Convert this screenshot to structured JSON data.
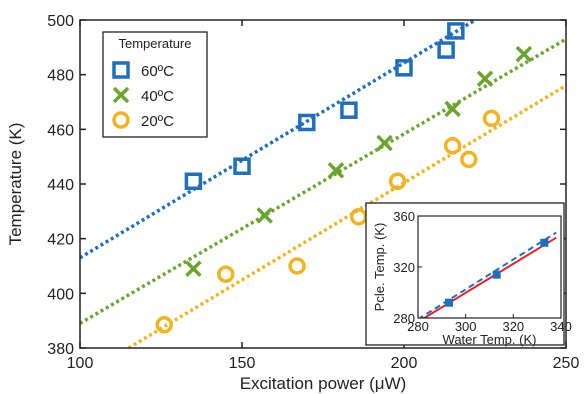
{
  "chart_data": [
    {
      "type": "scatter",
      "title": "",
      "xlabel": "Excitation power (μW)",
      "ylabel": "Temperature (K)",
      "xlim": [
        100,
        250
      ],
      "ylim": [
        380,
        500
      ],
      "xticks": [
        100,
        150,
        200,
        250
      ],
      "yticks": [
        380,
        400,
        420,
        440,
        460,
        480,
        500
      ],
      "legend": {
        "title": "Temperature",
        "placement": "top-left",
        "entries": [
          "60ºC",
          "40ºC",
          "20ºC"
        ]
      },
      "series": [
        {
          "name": "60ºC",
          "marker": "square",
          "color": "#1f6fbd",
          "points": [
            [
              135,
              441
            ],
            [
              150,
              446.5
            ],
            [
              170,
              462.5
            ],
            [
              183,
              467
            ],
            [
              200,
              482.5
            ],
            [
              213,
              489
            ],
            [
              216,
              496
            ]
          ],
          "fit": {
            "style": "dotted",
            "x0": 100,
            "y0": 413,
            "x1": 222,
            "y1": 500
          }
        },
        {
          "name": "40ºC",
          "marker": "x",
          "color": "#6aa62f",
          "points": [
            [
              135,
              409
            ],
            [
              157,
              428.5
            ],
            [
              179,
              445
            ],
            [
              194,
              455
            ],
            [
              215,
              467.5
            ],
            [
              225,
              478.5
            ],
            [
              237,
              487.5
            ]
          ],
          "fit": {
            "style": "dotted",
            "x0": 100,
            "y0": 389,
            "x1": 250,
            "y1": 493
          }
        },
        {
          "name": "20ºC",
          "marker": "circle",
          "color": "#f0b323",
          "points": [
            [
              126,
              388.5
            ],
            [
              145,
              407
            ],
            [
              167,
              410
            ],
            [
              186,
              428
            ],
            [
              198,
              441
            ],
            [
              215,
              454
            ],
            [
              220,
              449
            ],
            [
              227,
              464
            ]
          ],
          "fit": {
            "style": "dotted",
            "x0": 115,
            "y0": 380,
            "x1": 250,
            "y1": 476
          }
        }
      ]
    },
    {
      "type": "scatter",
      "title": "",
      "xlabel": "Water Temp. (K)",
      "ylabel": "Pcle. Temp. (K)",
      "xlim": [
        280,
        340
      ],
      "ylim": [
        280,
        360
      ],
      "xticks": [
        280,
        300,
        320,
        340
      ],
      "xtick_labels": [
        "280",
        "300",
        "320",
        "340"
      ],
      "yticks": [
        280,
        320,
        360
      ],
      "series": [
        {
          "name": "",
          "marker": "filled-square",
          "color": "#1f6fbd",
          "points": [
            [
              293,
              292
            ],
            [
              313,
              314
            ],
            [
              333,
              339
            ]
          ],
          "fit": {
            "style": "dashed",
            "x0": 280,
            "y0": 279,
            "x1": 338,
            "y1": 347
          }
        },
        {
          "name": "",
          "marker": "none",
          "color": "#e8222a",
          "points": [],
          "fit": {
            "style": "solid",
            "x0": 280,
            "y0": 277,
            "x1": 338,
            "y1": 343
          }
        }
      ]
    }
  ]
}
